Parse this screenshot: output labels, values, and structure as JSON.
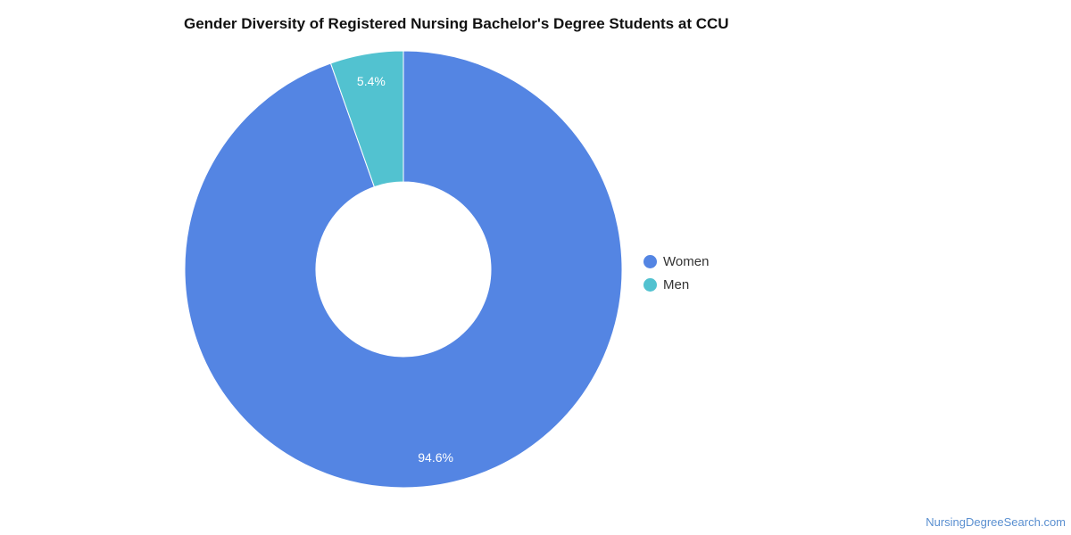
{
  "chart_data": {
    "type": "pie",
    "title": "Gender Diversity of Registered Nursing Bachelor's Degree Students at CCU",
    "categories": [
      "Women",
      "Men"
    ],
    "values": [
      94.6,
      5.4
    ],
    "data_labels": [
      "94.6%",
      "5.4%"
    ],
    "colors": [
      "#5485e3",
      "#52c2d0"
    ],
    "donut": true,
    "legend_position": "right"
  },
  "footer": {
    "credit": "NursingDegreeSearch.com"
  }
}
